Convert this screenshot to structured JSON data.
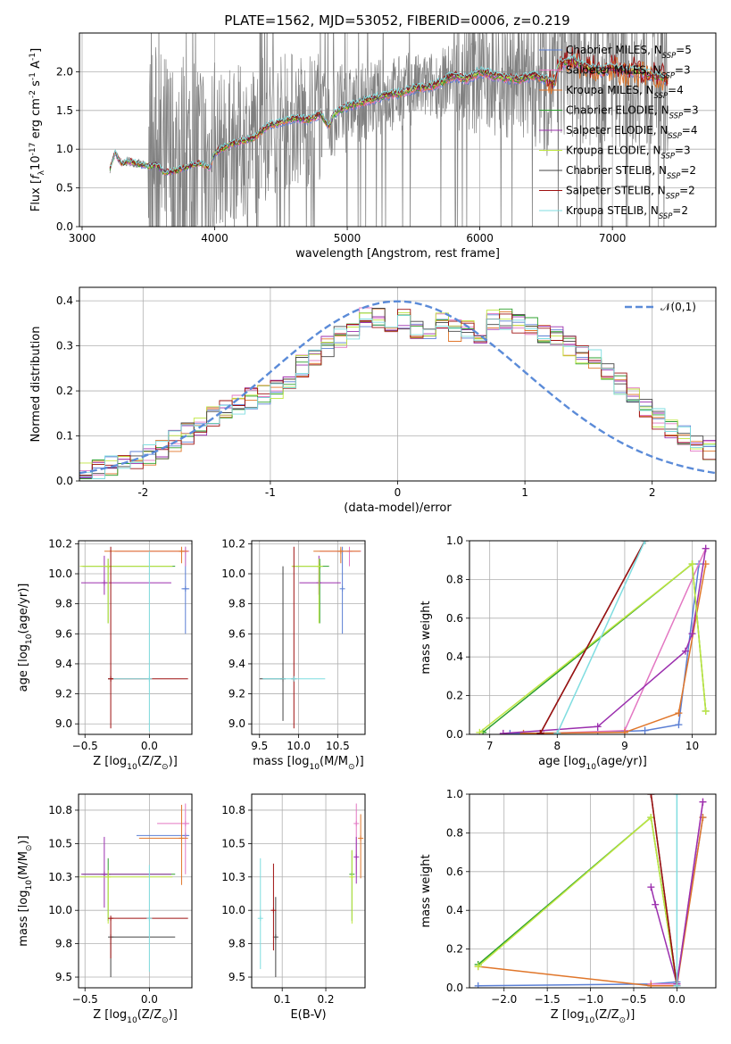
{
  "figure": {
    "title": "PLATE=1562, MJD=53052, FIBERID=0006, z=0.219"
  },
  "series": [
    {
      "key": "chab_miles",
      "label": "Chabrier MILES, N$_{SSP}$=5",
      "color": "#5b7fd4",
      "n_ssp": 5
    },
    {
      "key": "salp_miles",
      "label": "Salpeter MILES, N$_{SSP}$=3",
      "color": "#e377c2",
      "n_ssp": 3
    },
    {
      "key": "krou_miles",
      "label": "Kroupa MILES, N$_{SSP}$=4",
      "color": "#e0762a",
      "n_ssp": 4
    },
    {
      "key": "chab_elodie",
      "label": "Chabrier ELODIE, N$_{SSP}$=3",
      "color": "#2ca02c",
      "n_ssp": 3
    },
    {
      "key": "salp_elodie",
      "label": "Salpeter ELODIE, N$_{SSP}$=4",
      "color": "#9b2fae",
      "n_ssp": 4
    },
    {
      "key": "krou_elodie",
      "label": "Kroupa ELODIE, N$_{SSP}$=3",
      "color": "#bfe640",
      "n_ssp": 3
    },
    {
      "key": "chab_stelib",
      "label": "Chabrier STELIB, N$_{SSP}$=2",
      "color": "#444444",
      "n_ssp": 2
    },
    {
      "key": "salp_stelib",
      "label": "Salpeter STELIB, N$_{SSP}$=2",
      "color": "#9e1010",
      "n_ssp": 2
    },
    {
      "key": "krou_stelib",
      "label": "Kroupa STELIB, N$_{SSP}$=2",
      "color": "#7fdde0",
      "n_ssp": 2
    }
  ],
  "chart_data": [
    {
      "id": "spectrum",
      "type": "line",
      "xlabel": "wavelength [Angstrom, rest frame]",
      "ylabel": "Flux [$f_\\lambda$10$^{-17}$ erg cm$^{-2}$ s$^{-1}$ A$^{-1}$]",
      "xlim": [
        2980,
        7780
      ],
      "ylim": [
        0.0,
        2.5
      ],
      "xticks": [
        3000,
        4000,
        5000,
        6000,
        7000
      ],
      "yticks": [
        0.0,
        0.5,
        1.0,
        1.5,
        2.0
      ],
      "data_color": "#808080",
      "data_note": "observed spectrum (grey, noisy) with model fits overlaid",
      "model_points": {
        "x": [
          3210,
          3250,
          3300,
          3350,
          3400,
          3450,
          3500,
          3560,
          3620,
          3700,
          3800,
          3900,
          3960,
          4000,
          4100,
          4200,
          4300,
          4400,
          4500,
          4600,
          4700,
          4800,
          4860,
          4900,
          5000,
          5100,
          5200,
          5300,
          5400,
          5500,
          5600,
          5700,
          5800,
          5900,
          6000,
          6100,
          6200,
          6300,
          6400,
          6500,
          6560,
          6600,
          6700,
          6800,
          6900,
          7000,
          7100,
          7200,
          7300,
          7400
        ],
        "y": [
          0.75,
          0.95,
          0.8,
          0.85,
          0.82,
          0.8,
          0.78,
          0.8,
          0.7,
          0.72,
          0.78,
          0.82,
          0.75,
          0.95,
          1.05,
          1.1,
          1.15,
          1.3,
          1.35,
          1.4,
          1.38,
          1.45,
          1.3,
          1.45,
          1.55,
          1.6,
          1.65,
          1.7,
          1.72,
          1.78,
          1.8,
          1.85,
          1.95,
          1.9,
          2.0,
          1.95,
          1.92,
          1.9,
          1.95,
          1.9,
          1.85,
          2.1,
          2.15,
          2.05,
          2.0,
          2.05,
          2.0,
          2.0,
          1.95,
          1.9
        ]
      },
      "legend_position": "upper right"
    },
    {
      "id": "residuals",
      "type": "histogram",
      "xlabel": "(data-model)/error",
      "ylabel": "Normed distribution",
      "xlim": [
        -2.5,
        2.5
      ],
      "ylim": [
        0.0,
        0.43
      ],
      "xticks": [
        -2,
        -1,
        0,
        1,
        2
      ],
      "yticks": [
        0.0,
        0.1,
        0.2,
        0.3,
        0.4
      ],
      "bin_width": 0.1,
      "bin_start": -2.5,
      "base_values": [
        0.022,
        0.026,
        0.032,
        0.04,
        0.048,
        0.06,
        0.072,
        0.088,
        0.105,
        0.125,
        0.14,
        0.16,
        0.17,
        0.185,
        0.19,
        0.205,
        0.23,
        0.255,
        0.275,
        0.3,
        0.32,
        0.335,
        0.36,
        0.365,
        0.345,
        0.36,
        0.33,
        0.34,
        0.35,
        0.335,
        0.34,
        0.33,
        0.36,
        0.36,
        0.35,
        0.345,
        0.33,
        0.32,
        0.3,
        0.285,
        0.27,
        0.245,
        0.215,
        0.19,
        0.165,
        0.14,
        0.12,
        0.1,
        0.085,
        0.07
      ],
      "reference": {
        "label": "$\\mathcal{N}(0,1)$",
        "color": "#5b8bd8",
        "style": "dashed"
      },
      "legend_position": "upper right"
    },
    {
      "id": "age_vs_Z",
      "type": "errorbar",
      "xlabel": "Z [log$_{10}$(Z/Z$_\\odot$)]",
      "ylabel": "age  [log$_{10}$(age/yr)]",
      "xlim": [
        -0.55,
        0.33
      ],
      "ylim": [
        8.93,
        10.22
      ],
      "xticks": [
        -0.5,
        0.0
      ],
      "yticks": [
        9.0,
        9.2,
        9.4,
        9.6,
        9.8,
        10.0,
        10.2
      ],
      "points": [
        {
          "s": "chab_miles",
          "x": 0.28,
          "y": 9.9,
          "xerr": [
            0.03,
            0.03
          ],
          "yerr": [
            0.3,
            0.28
          ]
        },
        {
          "s": "salp_miles",
          "x": 0.28,
          "y": 10.15,
          "xerr": [
            0.55,
            0.03
          ],
          "yerr": [
            0.1,
            0.03
          ]
        },
        {
          "s": "krou_miles",
          "x": 0.25,
          "y": 10.15,
          "xerr": [
            0.6,
            0.05
          ],
          "yerr": [
            0.08,
            0.03
          ]
        },
        {
          "s": "chab_elodie",
          "x": -0.32,
          "y": 10.05,
          "xerr": [
            0.2,
            0.52
          ],
          "yerr": [
            0.38,
            0.05
          ]
        },
        {
          "s": "salp_elodie",
          "x": -0.35,
          "y": 9.94,
          "xerr": [
            0.18,
            0.52
          ],
          "yerr": [
            0.08,
            0.18
          ]
        },
        {
          "s": "krou_elodie",
          "x": -0.32,
          "y": 10.05,
          "xerr": [
            0.22,
            0.5
          ],
          "yerr": [
            0.38,
            0.05
          ]
        },
        {
          "s": "chab_stelib",
          "x": -0.3,
          "y": 9.3,
          "xerr": [
            0.0,
            0.0
          ],
          "yerr": [
            0.0,
            0.0
          ]
        },
        {
          "s": "salp_stelib",
          "x": -0.3,
          "y": 9.3,
          "xerr": [
            0.0,
            0.6
          ],
          "yerr": [
            0.33,
            0.88
          ]
        },
        {
          "s": "krou_stelib",
          "x": 0.0,
          "y": 9.3,
          "xerr": [
            0.28,
            0.0
          ],
          "yerr": [
            0.35,
            0.85
          ]
        }
      ]
    },
    {
      "id": "age_vs_mass",
      "type": "errorbar",
      "xlabel": "mass [log$_{10}$(M/M$_\\odot$)]",
      "xlim": [
        9.4,
        10.85
      ],
      "ylim": [
        8.93,
        10.22
      ],
      "xticks": [
        9.5,
        10.0,
        10.5
      ],
      "yticks": [
        9.0,
        9.2,
        9.4,
        9.6,
        9.8,
        10.0,
        10.2
      ],
      "points": [
        {
          "s": "chab_miles",
          "x": 10.56,
          "y": 9.9,
          "xerr": [
            0.0,
            0.0
          ],
          "yerr": [
            0.3,
            0.28
          ]
        },
        {
          "s": "salp_miles",
          "x": 10.65,
          "y": 10.15,
          "xerr": [
            0.38,
            0.15
          ],
          "yerr": [
            0.1,
            0.03
          ]
        },
        {
          "s": "krou_miles",
          "x": 10.54,
          "y": 10.15,
          "xerr": [
            0.35,
            0.25
          ],
          "yerr": [
            0.08,
            0.03
          ]
        },
        {
          "s": "chab_elodie",
          "x": 10.27,
          "y": 10.05,
          "xerr": [
            0.35,
            0.12
          ],
          "yerr": [
            0.38,
            0.05
          ]
        },
        {
          "s": "salp_elodie",
          "x": 10.26,
          "y": 9.94,
          "xerr": [
            0.25,
            0.28
          ],
          "yerr": [
            0.08,
            0.18
          ]
        },
        {
          "s": "krou_elodie",
          "x": 10.26,
          "y": 10.05,
          "xerr": [
            0.35,
            0.05
          ],
          "yerr": [
            0.38,
            0.05
          ]
        },
        {
          "s": "chab_stelib",
          "x": 9.8,
          "y": 9.3,
          "xerr": [
            0.3,
            0.0
          ],
          "yerr": [
            0.28,
            0.75
          ]
        },
        {
          "s": "salp_stelib",
          "x": 9.94,
          "y": 9.3,
          "xerr": [
            0.0,
            0.0
          ],
          "yerr": [
            0.33,
            0.88
          ]
        },
        {
          "s": "krou_stelib",
          "x": 9.94,
          "y": 9.3,
          "xerr": [
            0.4,
            0.4
          ],
          "yerr": [
            0.0,
            0.0
          ]
        }
      ]
    },
    {
      "id": "massweight_vs_age",
      "type": "line",
      "xlabel": "age  [log$_{10}$(age/yr)]",
      "ylabel": "mass weight",
      "xlim": [
        6.7,
        10.35
      ],
      "ylim": [
        0.0,
        1.0
      ],
      "xticks": [
        7,
        8,
        9,
        10
      ],
      "yticks": [
        0.0,
        0.2,
        0.4,
        0.6,
        0.8,
        1.0
      ],
      "lines": [
        {
          "s": "chab_miles",
          "x": [
            7.3,
            8.6,
            9.3,
            9.8,
            10.1
          ],
          "y": [
            0.005,
            0.01,
            0.02,
            0.05,
            0.88
          ]
        },
        {
          "s": "salp_miles",
          "x": [
            7.8,
            9.0,
            10.2
          ],
          "y": [
            0.005,
            0.02,
            0.96
          ]
        },
        {
          "s": "krou_miles",
          "x": [
            7.5,
            9.0,
            9.8,
            10.2
          ],
          "y": [
            0.005,
            0.01,
            0.11,
            0.88
          ]
        },
        {
          "s": "chab_elodie",
          "x": [
            6.9,
            10.0,
            10.2
          ],
          "y": [
            0.01,
            0.88,
            0.12
          ]
        },
        {
          "s": "salp_elodie",
          "x": [
            7.2,
            8.6,
            9.9,
            10.0,
            10.2
          ],
          "y": [
            0.005,
            0.04,
            0.43,
            0.52,
            0.96
          ]
        },
        {
          "s": "krou_elodie",
          "x": [
            6.85,
            10.0,
            10.2
          ],
          "y": [
            0.01,
            0.88,
            0.12
          ]
        },
        {
          "s": "chab_stelib",
          "x": [
            7.75,
            9.3
          ],
          "y": [
            0.005,
            1.0
          ]
        },
        {
          "s": "salp_stelib",
          "x": [
            7.75,
            9.3
          ],
          "y": [
            0.005,
            1.0
          ]
        },
        {
          "s": "krou_stelib",
          "x": [
            8.0,
            9.3
          ],
          "y": [
            0.005,
            1.0
          ]
        }
      ]
    },
    {
      "id": "mass_vs_Z",
      "type": "errorbar",
      "xlabel": "Z [log$_{10}$(Z/Z$_\\odot$)]",
      "ylabel": "mass [log$_{10}$(M/M$_\\odot$)]",
      "xlim": [
        -0.55,
        0.33
      ],
      "ylim": [
        9.42,
        10.87
      ],
      "xticks": [
        -0.5,
        0.0
      ],
      "yticks": [
        9.5,
        9.75,
        10.0,
        10.25,
        10.5,
        10.75
      ],
      "points": [
        {
          "s": "chab_miles",
          "x": 0.28,
          "y": 10.56,
          "xerr": [
            0.38,
            0.03
          ],
          "yerr": [
            0.0,
            0.0
          ]
        },
        {
          "s": "salp_miles",
          "x": 0.28,
          "y": 10.65,
          "xerr": [
            0.22,
            0.03
          ],
          "yerr": [
            0.38,
            0.15
          ]
        },
        {
          "s": "krou_miles",
          "x": 0.25,
          "y": 10.54,
          "xerr": [
            0.33,
            0.05
          ],
          "yerr": [
            0.35,
            0.25
          ]
        },
        {
          "s": "chab_elodie",
          "x": -0.32,
          "y": 10.27,
          "xerr": [
            0.2,
            0.52
          ],
          "yerr": [
            0.35,
            0.12
          ]
        },
        {
          "s": "salp_elodie",
          "x": -0.35,
          "y": 10.27,
          "xerr": [
            0.18,
            0.52
          ],
          "yerr": [
            0.25,
            0.28
          ]
        },
        {
          "s": "krou_elodie",
          "x": -0.32,
          "y": 10.25,
          "xerr": [
            0.22,
            0.5
          ],
          "yerr": [
            0.35,
            0.05
          ]
        },
        {
          "s": "chab_stelib",
          "x": -0.3,
          "y": 9.8,
          "xerr": [
            0.0,
            0.5
          ],
          "yerr": [
            0.3,
            0.0
          ]
        },
        {
          "s": "salp_stelib",
          "x": -0.3,
          "y": 9.94,
          "xerr": [
            0.0,
            0.6
          ],
          "yerr": [
            0.3,
            0.0
          ]
        },
        {
          "s": "krou_stelib",
          "x": 0.0,
          "y": 9.94,
          "xerr": [
            0.0,
            0.0
          ],
          "yerr": [
            0.4,
            0.4
          ]
        }
      ]
    },
    {
      "id": "mass_vs_ebv",
      "type": "errorbar",
      "xlabel": "E(B-V)",
      "xlim": [
        0.03,
        0.29
      ],
      "ylim": [
        9.42,
        10.87
      ],
      "xticks": [
        0.1,
        0.2
      ],
      "yticks": [
        9.5,
        9.75,
        10.0,
        10.25,
        10.5,
        10.75
      ],
      "points": [
        {
          "s": "salp_miles",
          "x": 0.27,
          "y": 10.65,
          "xerr": [
            0.0,
            0.0
          ],
          "yerr": [
            0.38,
            0.15
          ]
        },
        {
          "s": "krou_miles",
          "x": 0.28,
          "y": 10.54,
          "xerr": [
            0.0,
            0.0
          ],
          "yerr": [
            0.3,
            0.18
          ]
        },
        {
          "s": "chab_elodie",
          "x": 0.26,
          "y": 10.27,
          "xerr": [
            0.0,
            0.0
          ],
          "yerr": [
            0.35,
            0.18
          ]
        },
        {
          "s": "salp_elodie",
          "x": 0.27,
          "y": 10.4,
          "xerr": [
            0.0,
            0.0
          ],
          "yerr": [
            0.2,
            0.15
          ]
        },
        {
          "s": "krou_elodie",
          "x": 0.26,
          "y": 10.25,
          "xerr": [
            0.0,
            0.0
          ],
          "yerr": [
            0.35,
            0.2
          ]
        },
        {
          "s": "chab_stelib",
          "x": 0.085,
          "y": 9.8,
          "xerr": [
            0.0,
            0.0
          ],
          "yerr": [
            0.3,
            0.3
          ]
        },
        {
          "s": "salp_stelib",
          "x": 0.08,
          "y": 10.0,
          "xerr": [
            0.0,
            0.0
          ],
          "yerr": [
            0.3,
            0.35
          ]
        },
        {
          "s": "krou_stelib",
          "x": 0.05,
          "y": 9.94,
          "xerr": [
            0.0,
            0.0
          ],
          "yerr": [
            0.38,
            0.45
          ]
        }
      ]
    },
    {
      "id": "massweight_vs_Z",
      "type": "line",
      "xlabel": "Z [log$_{10}$(Z/Z$_\\odot$)]",
      "ylabel": "mass weight",
      "xlim": [
        -2.4,
        0.45
      ],
      "ylim": [
        0.0,
        1.0
      ],
      "xticks": [
        -2.0,
        -1.5,
        -1.0,
        -0.5,
        0.0
      ],
      "yticks": [
        0.0,
        0.2,
        0.4,
        0.6,
        0.8,
        1.0
      ],
      "lines": [
        {
          "s": "chab_miles",
          "x": [
            -2.3,
            -0.3,
            0.0,
            0.3
          ],
          "y": [
            0.01,
            0.02,
            0.03,
            0.88
          ]
        },
        {
          "s": "salp_miles",
          "x": [
            -0.3,
            0.0,
            0.3
          ],
          "y": [
            0.02,
            0.02,
            0.96
          ]
        },
        {
          "s": "krou_miles",
          "x": [
            -2.3,
            -0.3,
            0.0,
            0.3
          ],
          "y": [
            0.11,
            0.01,
            0.01,
            0.88
          ]
        },
        {
          "s": "chab_elodie",
          "x": [
            -2.3,
            -0.3,
            0.0
          ],
          "y": [
            0.12,
            0.88,
            0.01
          ]
        },
        {
          "s": "salp_elodie",
          "x": [
            -0.3,
            -0.25,
            0.0,
            0.3
          ],
          "y": [
            0.52,
            0.43,
            0.02,
            0.96
          ]
        },
        {
          "s": "krou_elodie",
          "x": [
            -2.3,
            -0.3,
            0.0
          ],
          "y": [
            0.11,
            0.88,
            0.01
          ]
        },
        {
          "s": "chab_stelib",
          "x": [
            -0.3,
            0.0
          ],
          "y": [
            1.0,
            0.01
          ]
        },
        {
          "s": "salp_stelib",
          "x": [
            -0.3,
            0.0
          ],
          "y": [
            1.0,
            0.01
          ]
        },
        {
          "s": "krou_stelib",
          "x": [
            0.0,
            0.0
          ],
          "y": [
            1.0,
            0.01
          ]
        }
      ]
    }
  ]
}
